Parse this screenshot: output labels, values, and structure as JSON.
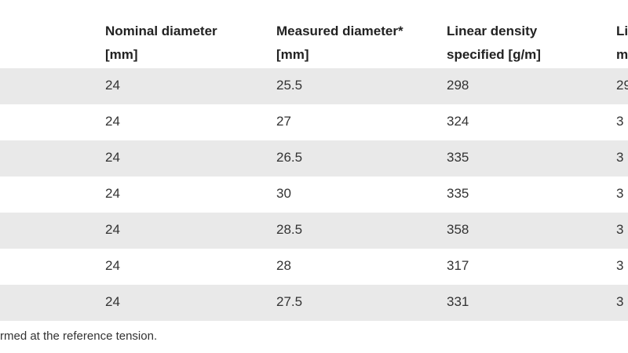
{
  "table": {
    "header": [
      [
        "Nominal diameter",
        "[mm]"
      ],
      [
        "Measured diameter*",
        "[mm]"
      ],
      [
        "Linear density",
        "specified [g/m]"
      ],
      [
        "Li",
        "m"
      ]
    ],
    "rows": [
      [
        "24",
        "25.5",
        "298",
        "29"
      ],
      [
        "24",
        "27",
        "324",
        "3"
      ],
      [
        "24",
        "26.5",
        "335",
        "3"
      ],
      [
        "24",
        "30",
        "335",
        "3"
      ],
      [
        "24",
        "28.5",
        "358",
        "3"
      ],
      [
        "24",
        "28",
        "317",
        "3"
      ],
      [
        "24",
        "27.5",
        "331",
        "3"
      ]
    ]
  },
  "footnote": "rmed at the reference tension."
}
